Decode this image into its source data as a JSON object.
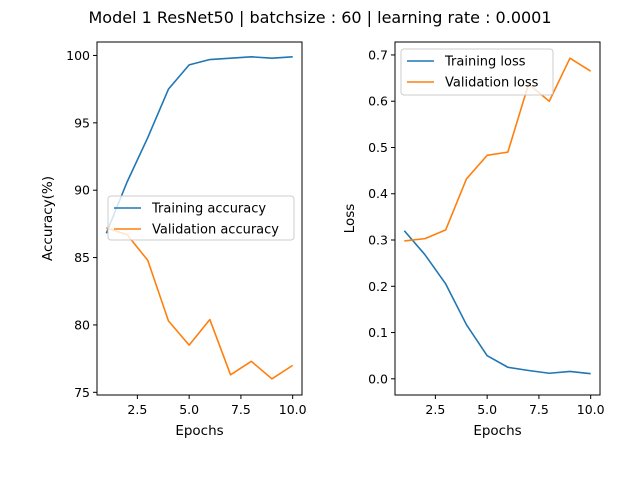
{
  "figure": {
    "suptitle": "Model 1 ResNet50 | batchsize : 60 | learning rate : 0.0001"
  },
  "chart_data": [
    {
      "type": "line",
      "xlabel": "Epochs",
      "ylabel": "Accuracy(%)",
      "xlim": [
        0.55,
        10.45
      ],
      "ylim": [
        74.8,
        101.0
      ],
      "xticks": [
        2.5,
        5.0,
        7.5,
        10.0
      ],
      "xtick_labels": [
        "2.5",
        "5.0",
        "7.5",
        "10.0"
      ],
      "yticks": [
        75,
        80,
        85,
        90,
        95,
        100
      ],
      "ytick_labels": [
        "75",
        "80",
        "85",
        "90",
        "95",
        "100"
      ],
      "grid": false,
      "legend": "center-right",
      "x": [
        1,
        2,
        3,
        4,
        5,
        6,
        7,
        8,
        9,
        10
      ],
      "series": [
        {
          "name": "Training accuracy",
          "color": "#1f77b4",
          "values": [
            86.8,
            90.6,
            93.9,
            97.5,
            99.3,
            99.7,
            99.8,
            99.9,
            99.8,
            99.9
          ]
        },
        {
          "name": "Validation accuracy",
          "color": "#ff7f0e",
          "values": [
            87.2,
            86.7,
            84.8,
            80.3,
            78.5,
            80.4,
            76.3,
            77.3,
            76.0,
            77.0
          ]
        }
      ]
    },
    {
      "type": "line",
      "xlabel": "Epochs",
      "ylabel": "Loss",
      "xlim": [
        0.55,
        10.45
      ],
      "ylim": [
        -0.035,
        0.728
      ],
      "xticks": [
        2.5,
        5.0,
        7.5,
        10.0
      ],
      "xtick_labels": [
        "2.5",
        "5.0",
        "7.5",
        "10.0"
      ],
      "yticks": [
        0.0,
        0.1,
        0.2,
        0.3,
        0.4,
        0.5,
        0.6,
        0.7
      ],
      "ytick_labels": [
        "0.0",
        "0.1",
        "0.2",
        "0.3",
        "0.4",
        "0.5",
        "0.6",
        "0.7"
      ],
      "grid": false,
      "legend": "top-left",
      "x": [
        1,
        2,
        3,
        4,
        5,
        6,
        7,
        8,
        9,
        10
      ],
      "series": [
        {
          "name": "Training loss",
          "color": "#1f77b4",
          "values": [
            0.32,
            0.268,
            0.205,
            0.117,
            0.05,
            0.025,
            0.018,
            0.012,
            0.016,
            0.011
          ]
        },
        {
          "name": "Validation loss",
          "color": "#ff7f0e",
          "values": [
            0.298,
            0.303,
            0.322,
            0.432,
            0.483,
            0.49,
            0.637,
            0.6,
            0.693,
            0.665
          ]
        }
      ]
    }
  ]
}
